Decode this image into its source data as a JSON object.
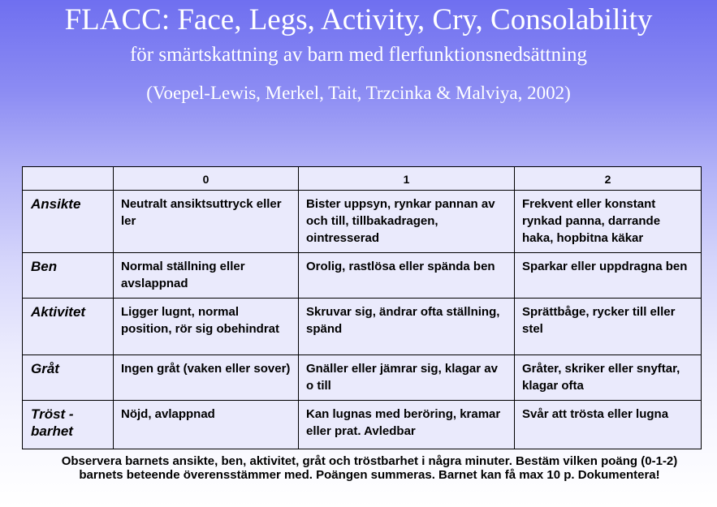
{
  "title": "FLACC: Face, Legs, Activity, Cry, Consolability",
  "subtitle": "för smärtskattning av barn med flerfunktionsnedsättning",
  "citation": "(Voepel-Lewis, Merkel, Tait, Trzcinka & Malviya, 2002)",
  "table": {
    "headers": [
      "",
      "0",
      "1",
      "2"
    ],
    "rows": [
      {
        "category": "Ansikte",
        "cells": [
          "Neutralt ansiktsuttryck eller ler",
          "Bister uppsyn, rynkar pannan av och till, tillbakadragen, ointresserad",
          "Frekvent eller konstant rynkad panna, darrande haka, hopbitna käkar"
        ]
      },
      {
        "category": "Ben",
        "cells": [
          "Normal ställning eller avslappnad",
          "Orolig, rastlösa eller spända ben",
          "Sparkar eller uppdragna ben"
        ]
      },
      {
        "category": "Aktivitet",
        "cells": [
          "Ligger lugnt, normal position, rör sig obehindrat",
          "Skruvar sig, ändrar ofta ställning, spänd",
          "Sprättbåge, rycker till eller stel"
        ]
      },
      {
        "category": "Gråt",
        "cells": [
          "Ingen gråt (vaken eller sover)",
          "Gnäller eller jämrar sig, klagar av o till",
          "Gråter, skriker eller snyftar, klagar ofta"
        ]
      },
      {
        "category": "Tröst - barhet",
        "cells": [
          "Nöjd, avlappnad",
          "Kan lugnas med beröring, kramar eller prat. Avledbar",
          "Svår att trösta eller lugna"
        ]
      }
    ]
  },
  "footer": "Observera barnets ansikte, ben, aktivitet, gråt och tröstbarhet i några minuter. Bestäm vilken poäng (0-1-2) barnets beteende överensstämmer med. Poängen summeras. Barnet kan få max 10 p. Dokumentera!"
}
